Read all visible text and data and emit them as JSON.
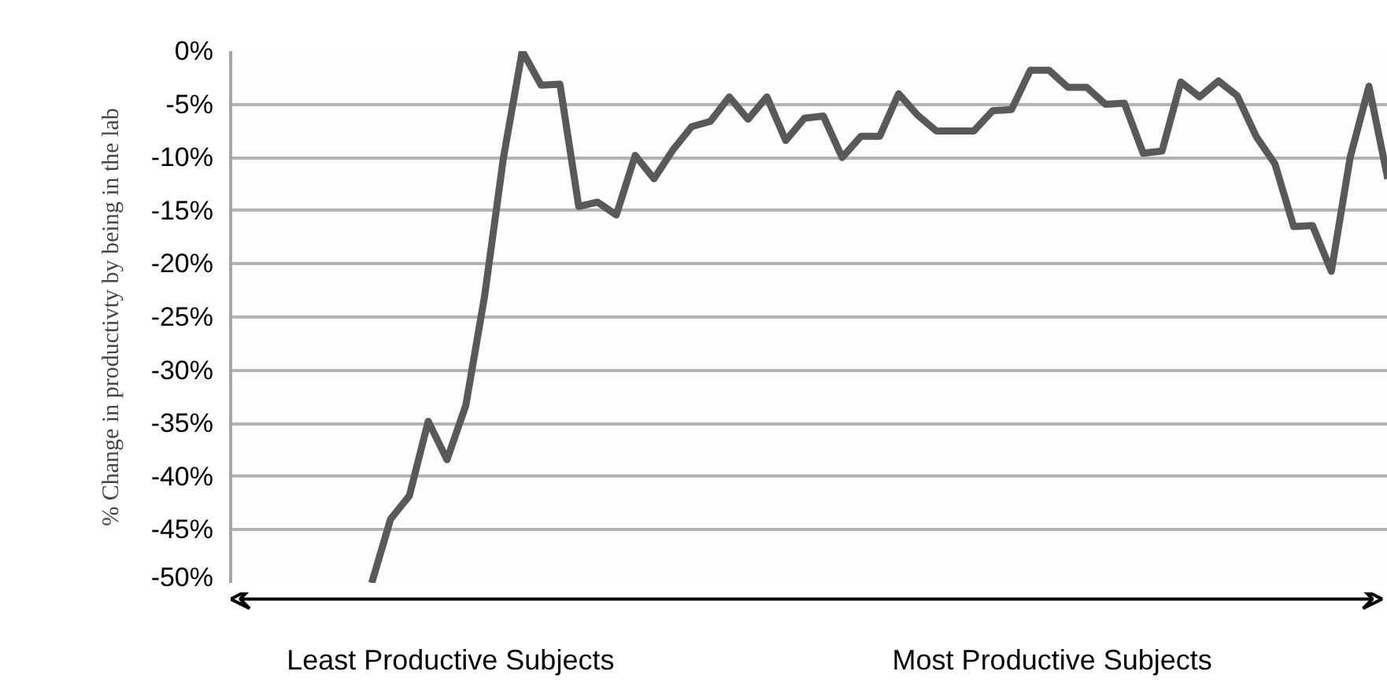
{
  "chart_data": {
    "type": "line",
    "ylabel": "% Change in productivty by being in the lab",
    "categories": [
      null,
      null,
      null,
      null,
      null,
      null,
      null,
      null,
      null,
      null,
      null,
      null,
      null,
      null,
      null,
      null,
      null,
      null,
      null,
      null,
      null,
      null,
      null,
      null,
      null,
      null,
      null,
      null,
      null,
      null,
      null,
      null,
      null,
      null,
      null,
      null,
      null,
      null,
      null,
      null,
      null,
      null,
      null,
      null,
      null,
      null,
      null,
      null,
      null,
      null,
      null,
      null,
      null,
      null,
      null,
      null,
      null,
      null,
      null,
      null,
      null,
      null
    ],
    "series": [
      {
        "color": "#595959",
        "values": [
          null,
          null,
          null,
          null,
          null,
          null,
          null,
          -50,
          -44,
          -41.8,
          -34.8,
          -38.4,
          -33.3,
          -23,
          -10,
          0,
          -3.2,
          -3.1,
          -14.6,
          -14.2,
          -15.4,
          -9.8,
          -12,
          -9.3,
          -7.1,
          -6.6,
          -4.3,
          -6.4,
          -4.3,
          -8.4,
          -6.3,
          -6.1,
          -10,
          -8,
          -8,
          -4,
          -6,
          -7.5,
          -7.5,
          -7.5,
          -5.6,
          -5.5,
          -1.8,
          -1.8,
          -3.4,
          -3.4,
          -5,
          -4.9,
          -9.6,
          -9.4,
          -2.9,
          -4.3,
          -2.8,
          -4.2,
          -8,
          -10.6,
          -16.5,
          -16.4,
          -20.7,
          -10,
          -3.3,
          -12
        ]
      }
    ],
    "ylim": [
      -50,
      0
    ],
    "yticks": [
      {
        "value": 0,
        "label": "0%"
      },
      {
        "value": -5,
        "label": "-5%"
      },
      {
        "value": -10,
        "label": "-10%"
      },
      {
        "value": -15,
        "label": "-15%"
      },
      {
        "value": -20,
        "label": "-20%"
      },
      {
        "value": -25,
        "label": "-25%"
      },
      {
        "value": -30,
        "label": "-30%"
      },
      {
        "value": -35,
        "label": "-35%"
      },
      {
        "value": -40,
        "label": "-40%"
      },
      {
        "value": -45,
        "label": "-45%"
      },
      {
        "value": -50,
        "label": "-50%"
      }
    ],
    "grid": "y",
    "tick_labels": "y",
    "marker": "none",
    "line_style": "solid",
    "annotations": [
      "Least Productive Subjects",
      "Most Productive Subjects"
    ]
  }
}
